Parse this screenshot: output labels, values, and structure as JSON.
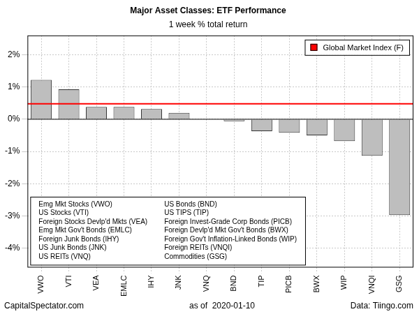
{
  "chart_data": {
    "type": "bar",
    "title": "Major Asset Classes: ETF Performance",
    "subtitle": "1 week % total return",
    "categories": [
      "VWO",
      "VTI",
      "VEA",
      "EMLC",
      "IHY",
      "JNK",
      "VNQ",
      "BND",
      "TIP",
      "PICB",
      "BWX",
      "WIP",
      "VNQI",
      "GSG"
    ],
    "values": [
      1.22,
      0.93,
      0.38,
      0.38,
      0.32,
      0.2,
      0.0,
      -0.06,
      -0.37,
      -0.42,
      -0.5,
      -0.68,
      -1.13,
      -2.97
    ],
    "color": "#bebebe",
    "reference_line": {
      "name": "Global Market Index (F)",
      "value": 0.48,
      "color": "#ff0000"
    },
    "legend": "topright",
    "ylim": [
      -4.6,
      2.6
    ],
    "yticks": [
      {
        "value": -4,
        "label": "-4%"
      },
      {
        "value": -3,
        "label": "-3%"
      },
      {
        "value": -2,
        "label": "-2%"
      },
      {
        "value": -1,
        "label": "-1%"
      },
      {
        "value": 0,
        "label": "0%"
      },
      {
        "value": 1,
        "label": "1%"
      },
      {
        "value": 2,
        "label": "2%"
      }
    ],
    "grid": true,
    "key": [
      [
        "Emg Mkt Stocks (VWO)",
        "US Stocks (VTI)",
        "Foreign Stocks Devlp'd Mkts (VEA)",
        "Emg Mkt Gov't Bonds (EMLC)",
        "Foreign Junk Bonds (IHY)",
        "US Junk Bonds (JNK)",
        "US REITs (VNQ)"
      ],
      [
        "US Bonds (BND)",
        "US TIPS (TIP)",
        "Foreign Invest-Grade Corp Bonds (PICB)",
        "Foreign Devlp'd Mkt Gov't Bonds (BWX)",
        "Foreign Gov't Inflation-Linked Bonds (WIP)",
        "Foreign REITs (VNQI)",
        "Commodities (GSG)"
      ]
    ],
    "footer_left": "CapitalSpectator.com",
    "footer_center": "as of  2020-01-10",
    "footer_right": "Data: Tiingo.com"
  }
}
